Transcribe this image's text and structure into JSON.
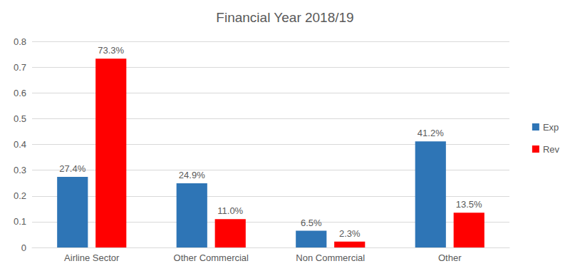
{
  "chart_data": {
    "type": "bar",
    "title": "Financial Year 2018/19",
    "categories": [
      "Airline Sector",
      "Other Commercial",
      "Non Commercial",
      "Other"
    ],
    "series": [
      {
        "name": "Exp",
        "color": "#2E75B6",
        "values": [
          0.274,
          0.249,
          0.065,
          0.412
        ],
        "value_labels": [
          "27.4%",
          "24.9%",
          "6.5%",
          "41.2%"
        ]
      },
      {
        "name": "Rev",
        "color": "#FF0000",
        "values": [
          0.733,
          0.11,
          0.023,
          0.135
        ],
        "value_labels": [
          "73.3%",
          "11.0%",
          "2.3%",
          "13.5%"
        ]
      }
    ],
    "ylim": [
      0,
      0.8
    ],
    "yticks": [
      0,
      0.1,
      0.2,
      0.3,
      0.4,
      0.5,
      0.6,
      0.7,
      0.8
    ],
    "grid": true,
    "legend": "right",
    "data_labels": true
  }
}
